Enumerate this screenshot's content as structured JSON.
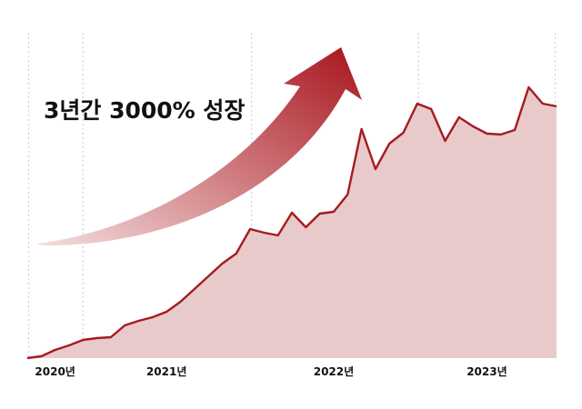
{
  "chart_data": {
    "type": "area",
    "title": "3년간 3000% 성장",
    "xlabel": "",
    "ylabel": "",
    "x": [
      0,
      1,
      2,
      3,
      4,
      5,
      6,
      7,
      8,
      9,
      10,
      11,
      12,
      13,
      14,
      15,
      16,
      17,
      18,
      19,
      20,
      21,
      22,
      23,
      24,
      25,
      26,
      27,
      28,
      29,
      30,
      31,
      32,
      33,
      34,
      35,
      36,
      37,
      38
    ],
    "values": [
      0,
      2,
      9,
      14,
      20,
      22,
      23,
      36,
      41,
      45,
      51,
      62,
      76,
      90,
      104,
      115,
      142,
      138,
      135,
      160,
      144,
      159,
      161,
      180,
      252,
      208,
      236,
      248,
      280,
      274,
      239,
      265,
      255,
      247,
      246,
      251,
      298,
      280,
      277
    ],
    "ylim": [
      0,
      310
    ],
    "xlim": [
      0,
      38
    ],
    "x_ticks": [
      {
        "x": 2,
        "label": "2020년"
      },
      {
        "x": 10,
        "label": "2021년"
      },
      {
        "x": 22,
        "label": "2022년"
      },
      {
        "x": 33,
        "label": "2023년"
      }
    ],
    "gridlines_x": [
      0.1,
      4,
      16.1,
      28.1,
      37.9
    ],
    "grid": "vertical dotted",
    "legend": "none",
    "colors": {
      "line": "#a51b20",
      "fill": "#e8cacb",
      "grid": "#c9d6d6",
      "arrow_start": "#f3dcdd",
      "arrow_end": "#a8141c"
    }
  }
}
